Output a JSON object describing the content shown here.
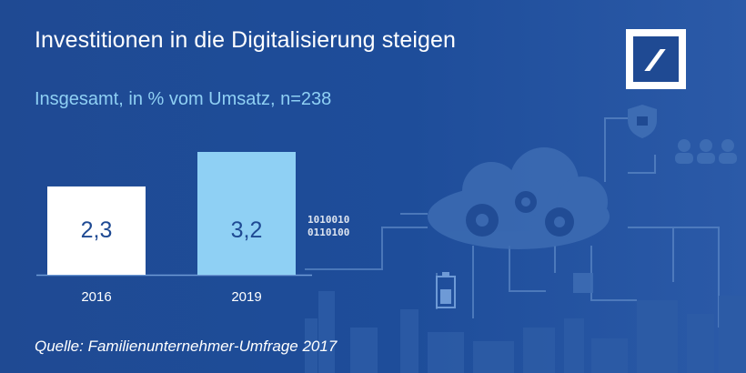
{
  "header": {
    "title": "Investitionen in die Digitalisierung steigen",
    "subtitle": "Insgesamt, in % vom Umsatz, n=238"
  },
  "source": "Quelle: Familienunternehmer-Umfrage 2017",
  "decor": {
    "binary_line1": "1010010",
    "binary_line2": "0110100"
  },
  "colors": {
    "background": "#1f4a93",
    "bar_2016": "#ffffff",
    "bar_2019": "#8fd0f4",
    "value_text": "#1f4a93",
    "subtitle": "#8fd0f4"
  },
  "chart_data": {
    "type": "bar",
    "title": "Investitionen in die Digitalisierung steigen",
    "subtitle": "Insgesamt, in % vom Umsatz, n=238",
    "categories": [
      "2016",
      "2019"
    ],
    "values": [
      2.3,
      3.2
    ],
    "value_labels": [
      "2,3",
      "3,2"
    ],
    "xlabel": "",
    "ylabel": "",
    "ylim": [
      0,
      3.2
    ],
    "grid": false,
    "legend": "none"
  }
}
